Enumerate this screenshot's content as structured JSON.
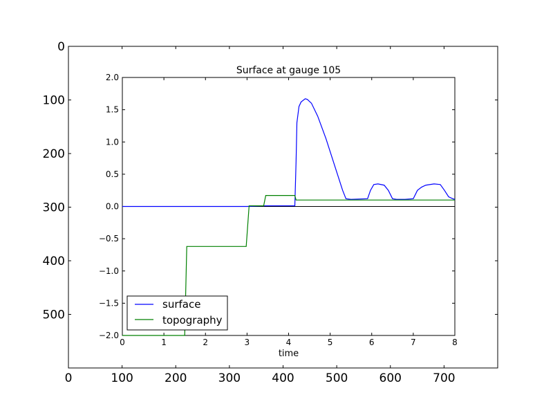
{
  "chart_data": [
    {
      "type": "image",
      "role": "outer-image-axes",
      "x_ticks": [
        "0",
        "100",
        "200",
        "300",
        "400",
        "500",
        "600",
        "700"
      ],
      "y_ticks": [
        "0",
        "100",
        "200",
        "300",
        "400",
        "500"
      ],
      "xlim": [
        0,
        800
      ],
      "ylim": [
        600,
        0
      ],
      "grid": false
    },
    {
      "type": "line",
      "title": "Surface at gauge 105",
      "xlabel": "time",
      "ylabel": "",
      "xlim": [
        0,
        8
      ],
      "ylim": [
        -2.0,
        2.0
      ],
      "x_ticks": [
        "0",
        "1",
        "2",
        "3",
        "4",
        "5",
        "6",
        "7",
        "8"
      ],
      "y_ticks": [
        "2.0",
        "1.5",
        "1.0",
        "0.5",
        "0.0",
        "−0.5",
        "−1.0",
        "−1.5",
        "−2.0"
      ],
      "grid": false,
      "legend": {
        "position": "lower-left"
      },
      "reference_line": {
        "y": 0.0,
        "color": "#000000"
      },
      "series": [
        {
          "name": "surface",
          "color": "#0000ff",
          "x": [
            0,
            3.0,
            3.4,
            4.15,
            4.18,
            4.2,
            4.22,
            4.25,
            4.3,
            4.4,
            4.45,
            4.55,
            4.7,
            4.9,
            5.1,
            5.3,
            5.38,
            5.5,
            5.9,
            5.97,
            6.05,
            6.15,
            6.3,
            6.4,
            6.5,
            6.6,
            6.8,
            7.0,
            7.1,
            7.2,
            7.3,
            7.5,
            7.65,
            7.75,
            7.85,
            7.95,
            8.0
          ],
          "y": [
            0.0,
            0.0,
            0.01,
            0.01,
            0.7,
            1.3,
            1.4,
            1.55,
            1.62,
            1.67,
            1.66,
            1.6,
            1.4,
            1.05,
            0.65,
            0.25,
            0.12,
            0.11,
            0.12,
            0.25,
            0.34,
            0.35,
            0.33,
            0.25,
            0.12,
            0.11,
            0.11,
            0.12,
            0.25,
            0.3,
            0.33,
            0.35,
            0.34,
            0.25,
            0.15,
            0.12,
            0.11
          ]
        },
        {
          "name": "topography",
          "color": "#008000",
          "x": [
            0,
            1.5,
            1.55,
            2.98,
            3.05,
            3.4,
            3.45,
            4.15,
            4.18,
            8.0
          ],
          "y": [
            -2.0,
            -2.0,
            -0.62,
            -0.62,
            0.01,
            0.01,
            0.17,
            0.17,
            0.1,
            0.1
          ]
        }
      ]
    }
  ]
}
